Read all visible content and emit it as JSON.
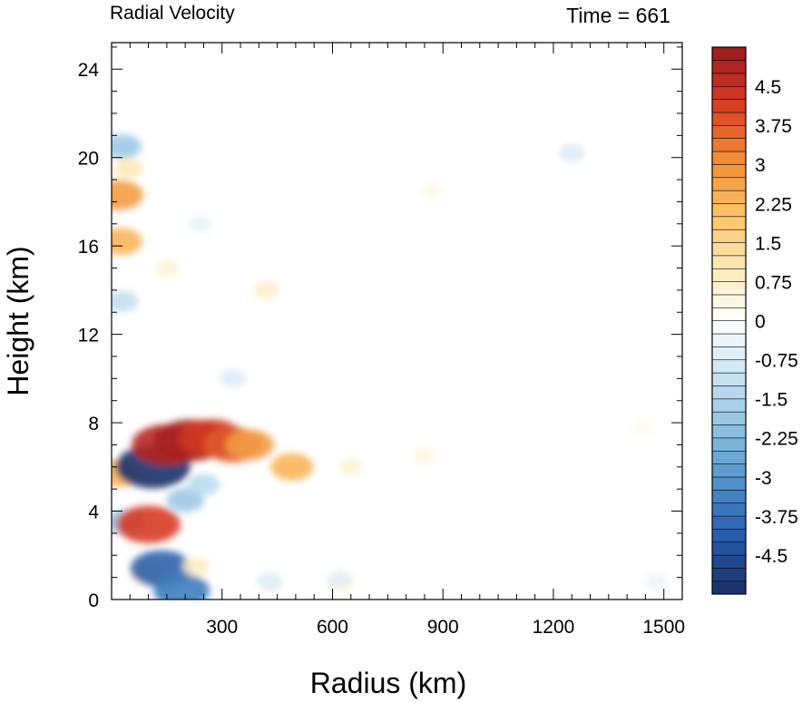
{
  "chart_data": {
    "type": "heatmap",
    "title_left": "Radial Velocity",
    "title_right": "Time = 661",
    "xlabel": "Radius (km)",
    "ylabel": "Height (km)",
    "xlim": [
      0,
      1550
    ],
    "ylim": [
      0,
      25.2
    ],
    "xticks": [
      300,
      600,
      900,
      1200,
      1500
    ],
    "xtick_labels": [
      "300",
      "600",
      "900",
      "1200",
      "1500"
    ],
    "yticks": [
      0,
      4,
      8,
      12,
      16,
      20,
      24
    ],
    "ytick_labels": [
      "0",
      "4",
      "8",
      "12",
      "16",
      "20",
      "24"
    ],
    "colorbar": {
      "min": -5.25,
      "max": 5.25,
      "step": 0.25,
      "label_values": [
        4.5,
        3.75,
        3,
        2.25,
        1.5,
        0.75,
        0,
        -0.75,
        -1.5,
        -2.25,
        -3,
        -3.75,
        -4.5
      ],
      "labels": [
        "4.5",
        "3.75",
        "3",
        "2.25",
        "1.5",
        "0.75",
        "0",
        "-0.75",
        "-1.5",
        "-2.25",
        "-3",
        "-3.75",
        "-4.5"
      ],
      "palette": [
        "#1b2f66",
        "#245aa8",
        "#4d8ec9",
        "#8cc0e1",
        "#c9e3f2",
        "#ffffff",
        "#fde9b3",
        "#fbbf63",
        "#f08a35",
        "#d63a24",
        "#981b1e"
      ]
    },
    "features": [
      {
        "r": 20,
        "z": 18.3,
        "v": 2.8
      },
      {
        "r": 25,
        "z": 16.2,
        "v": 2.3
      },
      {
        "r": 30,
        "z": 20.5,
        "v": -1.8
      },
      {
        "r": 45,
        "z": 19.5,
        "v": 1.0
      },
      {
        "r": 30,
        "z": 13.5,
        "v": -1.2
      },
      {
        "r": 20,
        "z": 5.7,
        "v": 2.3
      },
      {
        "r": 40,
        "z": 3.5,
        "v": -2.0
      },
      {
        "r": 100,
        "z": 3.4,
        "v": 4.2
      },
      {
        "r": 100,
        "z": 1.2,
        "v": 1.5
      },
      {
        "r": 112,
        "z": 6.0,
        "v": -5.2
      },
      {
        "r": 135,
        "z": 1.4,
        "v": -4.0
      },
      {
        "r": 190,
        "z": 0.4,
        "v": -3.5
      },
      {
        "r": 150,
        "z": 7.0,
        "v": 4.8
      },
      {
        "r": 215,
        "z": 7.2,
        "v": 5.0
      },
      {
        "r": 270,
        "z": 7.3,
        "v": 4.3
      },
      {
        "r": 330,
        "z": 7.0,
        "v": 3.8
      },
      {
        "r": 375,
        "z": 7.0,
        "v": 2.8
      },
      {
        "r": 490,
        "z": 6.0,
        "v": 2.3
      },
      {
        "r": 200,
        "z": 4.5,
        "v": -1.8
      },
      {
        "r": 250,
        "z": 5.2,
        "v": -1.3
      },
      {
        "r": 330,
        "z": 10.0,
        "v": -0.7
      },
      {
        "r": 420,
        "z": 14.0,
        "v": 0.7
      },
      {
        "r": 150,
        "z": 15.0,
        "v": 0.6
      },
      {
        "r": 240,
        "z": 17.0,
        "v": -0.5
      },
      {
        "r": 650,
        "z": 6.0,
        "v": 0.6
      },
      {
        "r": 850,
        "z": 6.5,
        "v": 0.5
      },
      {
        "r": 1250,
        "z": 20.2,
        "v": -0.7
      },
      {
        "r": 870,
        "z": 18.5,
        "v": 0.4
      },
      {
        "r": 1440,
        "z": 7.8,
        "v": 0.3
      },
      {
        "r": 620,
        "z": 0.8,
        "v": 0.8
      },
      {
        "r": 430,
        "z": 0.8,
        "v": -0.7
      },
      {
        "r": 620,
        "z": 0.9,
        "v": -0.6
      },
      {
        "r": 1480,
        "z": 0.8,
        "v": -0.4
      },
      {
        "r": 230,
        "z": 1.5,
        "v": 0.8
      }
    ]
  }
}
